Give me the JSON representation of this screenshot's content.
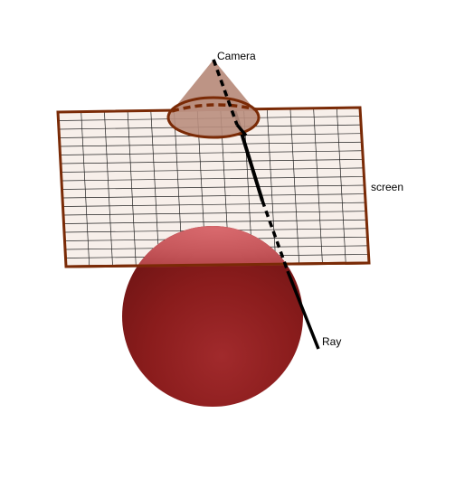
{
  "labels": {
    "camera": "Camera",
    "screen": "screen",
    "ray": "Ray"
  },
  "colors": {
    "background": "#ffffff",
    "screen_fill": "#f7efea",
    "screen_border": "#7a2a06",
    "grid_line": "#222222",
    "sphere_main": "#8e1d1d",
    "sphere_highlight": "#d25f62",
    "cone_fill": "#b98e7e",
    "cone_edge": "#7a2a06",
    "ray": "#000000"
  },
  "icons": {
    "camera": "cone",
    "object": "sphere",
    "screen": "grid-plane"
  }
}
